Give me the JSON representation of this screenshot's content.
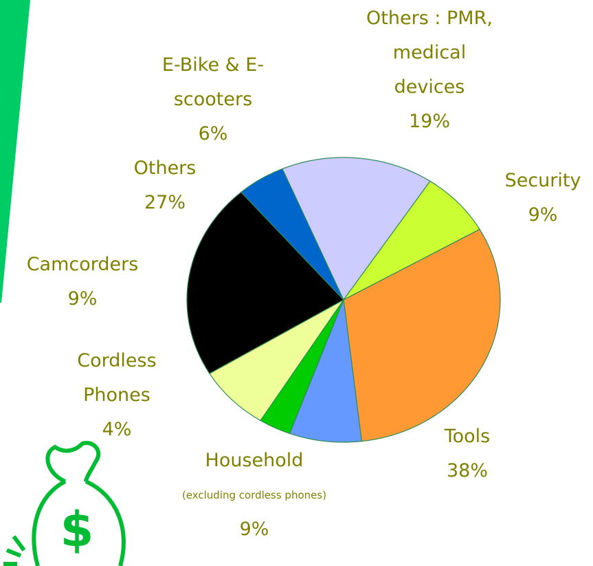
{
  "chart_data": {
    "type": "pie",
    "categories": [
      "Others : PMR, medical devices",
      "Security",
      "Tools",
      "Household",
      "Cordless Phones",
      "Camcorders",
      "Others",
      "E-Bike & E-scooters"
    ],
    "values": [
      19,
      9,
      38,
      9,
      4,
      9,
      27,
      6
    ],
    "value_labels": [
      "19%",
      "9%",
      "38%",
      "9%",
      "4%",
      "9%",
      "27%",
      "6%"
    ],
    "colors": [
      "#ccccff",
      "#ccff33",
      "#ff9933",
      "#6699ff",
      "#00cc00",
      "#eeff99",
      "#000000",
      "#0066cc"
    ],
    "annotations": [
      "(excluding cordless phones)"
    ]
  }
}
